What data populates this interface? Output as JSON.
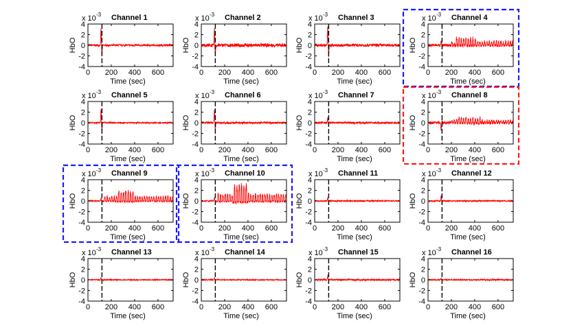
{
  "chart_data": {
    "type": "line",
    "layout": "4x4 grid of subplots",
    "xlabel": "Time (sec)",
    "ylabel": "HbO",
    "y_scale_label": "x 10",
    "y_scale_exponent": "-3",
    "xlim": [
      0,
      730
    ],
    "ylim": [
      -4,
      4
    ],
    "x_ticks": [
      "0",
      "200",
      "400",
      "600"
    ],
    "y_ticks": [
      "4",
      "2",
      "0",
      "-2",
      "-4"
    ],
    "line_color": "#ff0000",
    "stimulus_marker": {
      "x": 120,
      "style": "dashed",
      "color": "#000000"
    },
    "highlight_colors": {
      "blue": "#1a1aff",
      "red": "#ff1a1a"
    },
    "channels": [
      {
        "title": "Channel 1",
        "noise": 0.3,
        "spike": 3.2,
        "activation": null,
        "highlight": null
      },
      {
        "title": "Channel 2",
        "noise": 0.5,
        "spike": 3.0,
        "activation": null,
        "highlight": null
      },
      {
        "title": "Channel 3",
        "noise": 0.4,
        "spike": 3.5,
        "activation": null,
        "highlight": null
      },
      {
        "title": "Channel 4",
        "noise": 0.4,
        "spike": 1.0,
        "activation": {
          "start": 200,
          "end": 730,
          "amplitude": 0.8,
          "peak_amplitude": 1.6,
          "peak_range": [
            230,
            420
          ]
        },
        "highlight": "blue"
      },
      {
        "title": "Channel 5",
        "noise": 0.2,
        "spike": 2.6,
        "activation": null,
        "highlight": null
      },
      {
        "title": "Channel 6",
        "noise": 0.3,
        "spike": 2.6,
        "activation": null,
        "highlight": null
      },
      {
        "title": "Channel 7",
        "noise": 0.3,
        "spike": 1.0,
        "activation": null,
        "highlight": null
      },
      {
        "title": "Channel 8",
        "noise": 0.4,
        "spike": -1.5,
        "activation": {
          "start": 200,
          "end": 730,
          "amplitude": 0.5,
          "peak_amplitude": 1.0,
          "peak_range": [
            250,
            450
          ]
        },
        "highlight": "red"
      },
      {
        "title": "Channel 9",
        "noise": 0.2,
        "spike": 0.6,
        "activation": {
          "start": 130,
          "end": 730,
          "amplitude": 1.0,
          "peak_amplitude": 2.2,
          "peak_range": [
            250,
            400
          ]
        },
        "highlight": "blue"
      },
      {
        "title": "Channel 10",
        "noise": 0.2,
        "spike": 0.6,
        "activation": {
          "start": 130,
          "end": 730,
          "amplitude": 1.5,
          "peak_amplitude": 3.6,
          "peak_range": [
            270,
            400
          ]
        },
        "highlight": "blue"
      },
      {
        "title": "Channel 11",
        "noise": 0.2,
        "spike": 0.6,
        "activation": null,
        "highlight": null
      },
      {
        "title": "Channel 12",
        "noise": 0.2,
        "spike": 0.9,
        "activation": null,
        "highlight": null
      },
      {
        "title": "Channel 13",
        "noise": 0.15,
        "spike": 0.5,
        "activation": null,
        "highlight": null
      },
      {
        "title": "Channel 14",
        "noise": 0.15,
        "spike": 0.4,
        "activation": null,
        "highlight": null
      },
      {
        "title": "Channel 15",
        "noise": 0.25,
        "spike": 0.8,
        "activation": null,
        "highlight": null
      },
      {
        "title": "Channel 16",
        "noise": 0.2,
        "spike": 0.3,
        "activation": null,
        "highlight": null
      }
    ]
  }
}
